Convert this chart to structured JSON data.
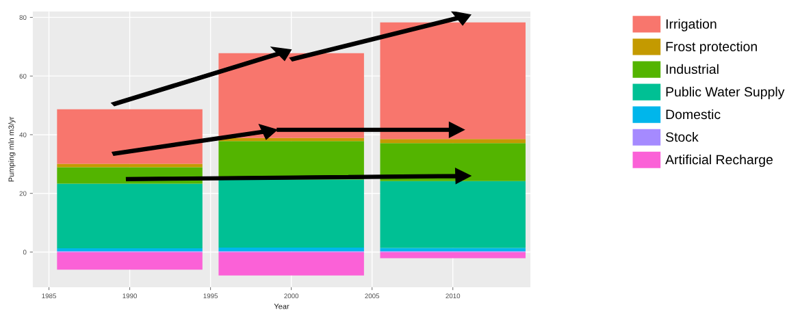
{
  "chart_data": {
    "type": "bar",
    "stacked": true,
    "xlabel": "Year",
    "ylabel": "Pumping mln m3/yr",
    "x": [
      1990,
      2000,
      2010
    ],
    "series": [
      {
        "name": "Artificial Recharge",
        "color": "#fb61d7",
        "values": [
          -6,
          -8,
          -2.1
        ]
      },
      {
        "name": "Stock",
        "color": "#a58aff",
        "values": [
          0.3,
          0.3,
          0.3
        ]
      },
      {
        "name": "Domestic",
        "color": "#00b6eb",
        "values": [
          1.0,
          1.2,
          1.1
        ]
      },
      {
        "name": "Public Water Supply",
        "color": "#00c094",
        "values": [
          22,
          23.2,
          22.8
        ]
      },
      {
        "name": "Industrial",
        "color": "#53b400",
        "values": [
          5.6,
          13.1,
          12.9
        ]
      },
      {
        "name": "Frost protection",
        "color": "#c49a00",
        "values": [
          1.2,
          1.1,
          1.4
        ]
      },
      {
        "name": "Irrigation",
        "color": "#f8766d",
        "values": [
          18.6,
          28.9,
          39.8
        ]
      }
    ],
    "xlim": [
      1984,
      2014.8
    ],
    "xticks": [
      1985,
      1990,
      1995,
      2000,
      2005,
      2010
    ],
    "ylim": [
      -12,
      82
    ],
    "yticks": [
      0,
      20,
      40,
      60,
      80
    ],
    "grid": true,
    "legend": "right"
  }
}
